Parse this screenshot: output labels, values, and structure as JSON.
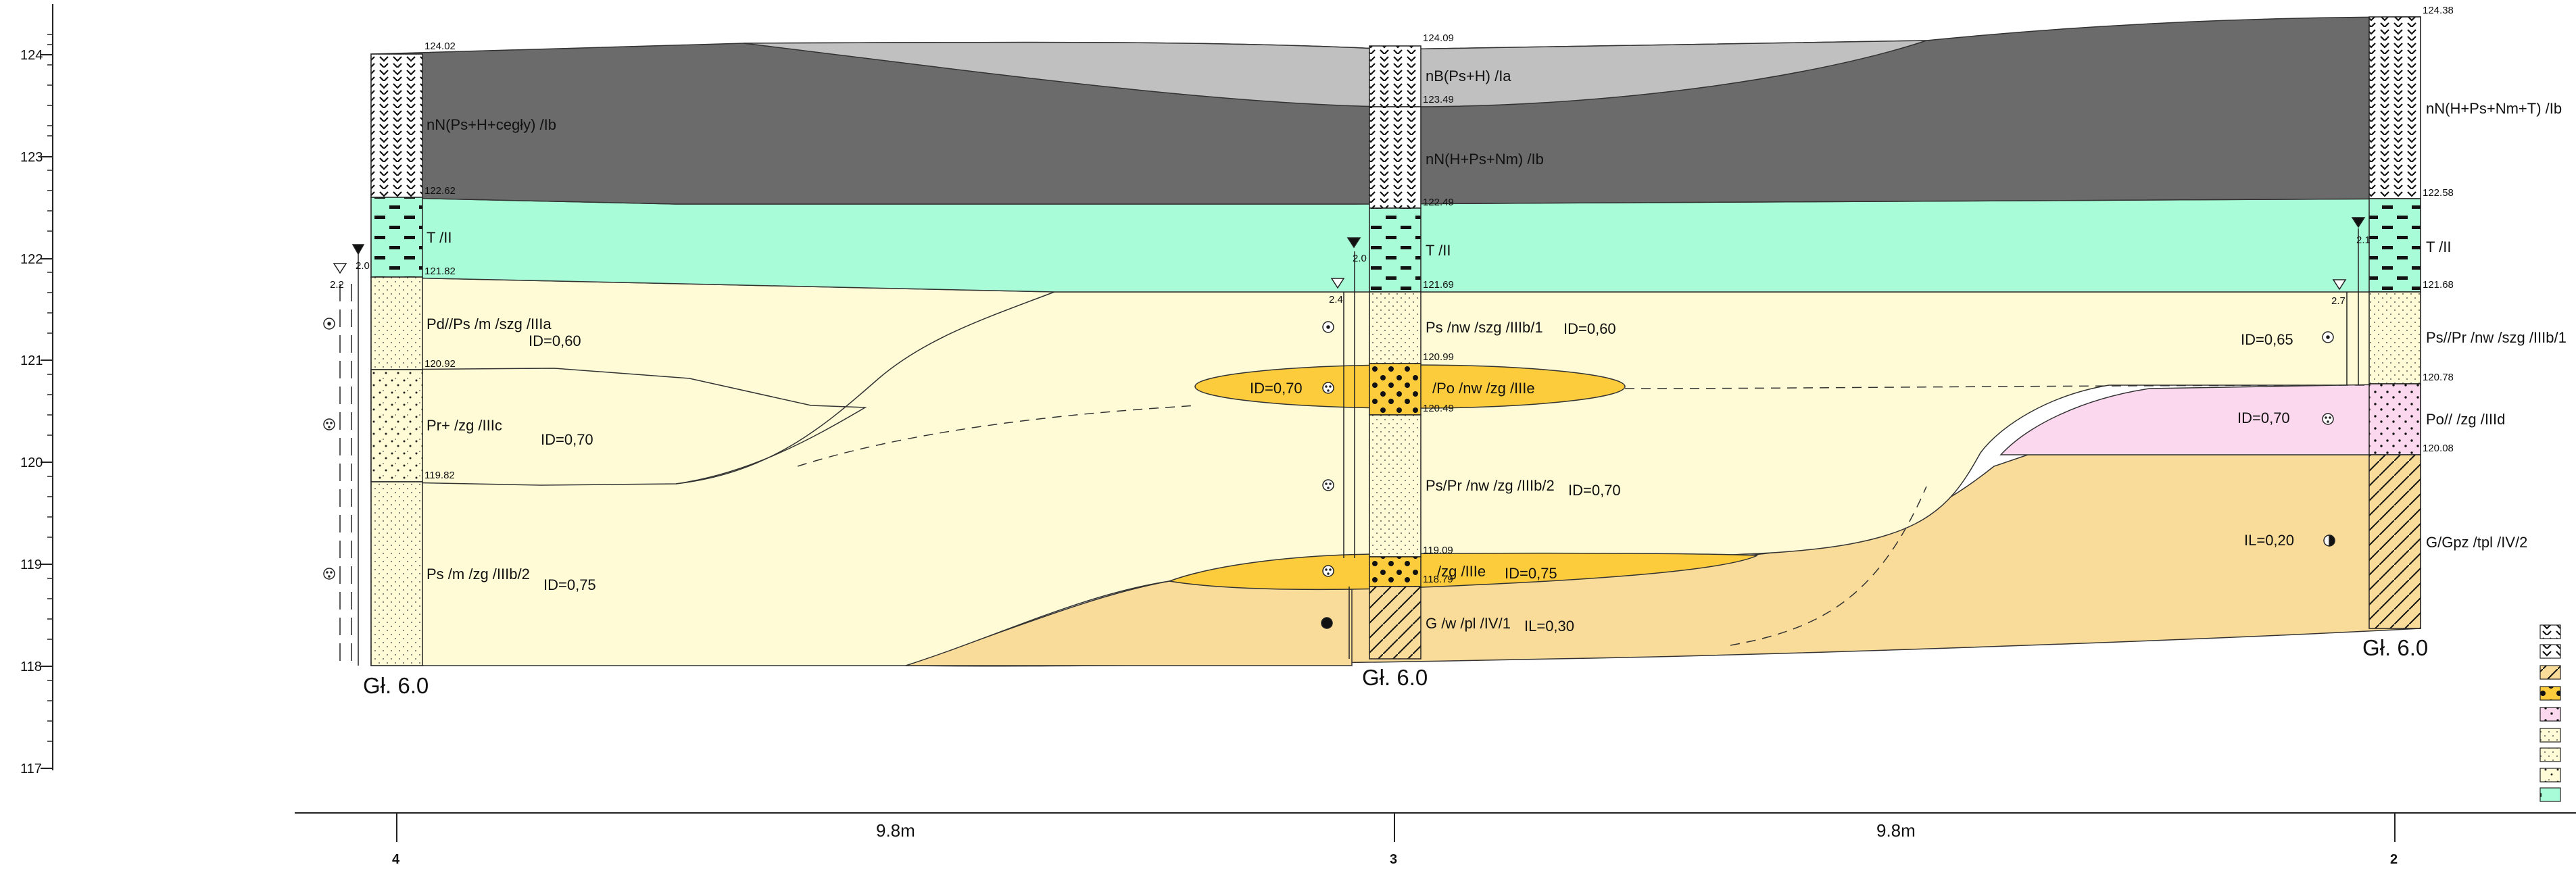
{
  "axis": {
    "ticks": [
      "124",
      "123",
      "122",
      "121",
      "120",
      "119",
      "118",
      "117"
    ]
  },
  "boreholes": [
    {
      "id": "4",
      "depth_label": "Gł. 6.0",
      "elevations": [
        "124.02",
        "122.62",
        "121.82",
        "120.92",
        "119.82"
      ],
      "water": {
        "set": "2.0",
        "initial": "2.2"
      }
    },
    {
      "id": "3",
      "depth_label": "Gł. 6.0",
      "elevations": [
        "124.09",
        "123.49",
        "122.49",
        "121.69",
        "120.99",
        "120.49",
        "119.09",
        "118.79"
      ],
      "water": {
        "set": "2.0",
        "initial": "2.4"
      }
    },
    {
      "id": "2",
      "depth_label": "Gł. 6.0",
      "elevations": [
        "124.38",
        "122.58",
        "121.68",
        "120.78",
        "120.08"
      ],
      "water": {
        "set": "2.1",
        "initial": "2.7"
      }
    }
  ],
  "layers": {
    "nN_psh": "nN(Ps+H+cegły) /Ib",
    "nB": "nB(Ps+H) /Ia",
    "nN_hpsnm": "nN(H+Ps+Nm) /Ib",
    "nN_hpsnmt": "nN(H+Ps+Nm+T) /Ib",
    "t4": "T /II",
    "t3": "T /II",
    "t2": "T /II",
    "pd": "Pd//Ps /m /szg /IIIa",
    "pr_plus": "Pr+   /zg /IIIc",
    "ps_m": "Ps /m /zg /IIIb/2",
    "ps_nw": "Ps /nw /szg /IIIb/1",
    "po_lens": "/Po /nw /zg /IIIe",
    "pspr": "Ps/Pr /nw /zg /IIIb/2",
    "zg_lens": "/zg /IIIe",
    "g_w": "G /w /pl /IV/1",
    "pspr_nw": "Ps//Pr /nw /szg /IIIb/1",
    "po_right": "Po//   /zg /IIId",
    "ggpz": "G/Gpz /tpl /IV/2"
  },
  "indices": {
    "id_060": "ID=0,60",
    "id_070_a": "ID=0,70",
    "id_075_a": "ID=0,75",
    "id_060_b": "ID=0,60",
    "id_070_lens": "ID=0,70",
    "id_070_b": "ID=0,70",
    "id_075_b": "ID=0,75",
    "il_030": "IL=0,30",
    "id_065": "ID=0,65",
    "id_070_c": "ID=0,70",
    "il_020": "IL=0,20"
  },
  "distances": [
    "9.8m",
    "9.8m"
  ],
  "colors": {
    "fill_dark": "#6b6b6b",
    "fill_light_grey": "#c0c0c0",
    "fill_peat": "#a8fdd8",
    "fill_sand": "#fffbd6",
    "fill_clay": "#f9dc9a",
    "fill_lens": "#fdcc3c",
    "fill_pink": "#fcd8ee"
  }
}
